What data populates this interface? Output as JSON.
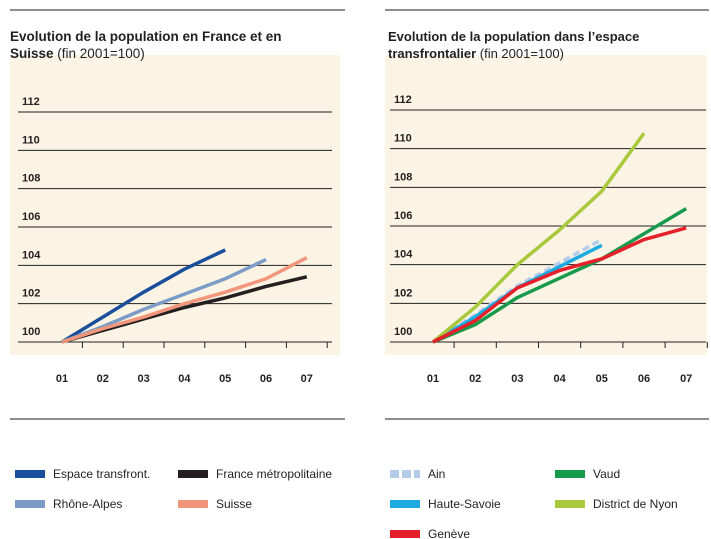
{
  "chart_data": [
    {
      "type": "line",
      "title": "Evolution de la population en France et en Suisse",
      "subtitle": "(fin 2001=100)",
      "categories": [
        "01",
        "02",
        "03",
        "04",
        "05",
        "06",
        "07"
      ],
      "ylim": [
        100,
        112
      ],
      "yticks": [
        100,
        102,
        104,
        106,
        108,
        110,
        112
      ],
      "grid": true,
      "series": [
        {
          "name": "Espace transfront.",
          "color": "#1b4e9b",
          "values": [
            100,
            101.3,
            102.6,
            103.8,
            104.8,
            null,
            null
          ]
        },
        {
          "name": "France métropolitaine",
          "color": "#231f20",
          "values": [
            100,
            100.6,
            101.2,
            101.8,
            102.3,
            102.9,
            103.4
          ]
        },
        {
          "name": "Rhône-Alpes",
          "color": "#7b9cc6",
          "values": [
            100,
            100.8,
            101.7,
            102.5,
            103.3,
            104.3,
            null
          ]
        },
        {
          "name": "Suisse",
          "color": "#f1967b",
          "values": [
            100,
            100.7,
            101.3,
            102.0,
            102.6,
            103.3,
            104.4
          ]
        }
      ]
    },
    {
      "type": "line",
      "title": "Evolution de la population dans l’espace transfrontalier",
      "subtitle": "(fin 2001=100)",
      "categories": [
        "01",
        "02",
        "03",
        "04",
        "05",
        "06",
        "07"
      ],
      "ylim": [
        100,
        112
      ],
      "yticks": [
        100,
        102,
        104,
        106,
        108,
        110,
        112
      ],
      "grid": true,
      "series": [
        {
          "name": "Ain",
          "color": "#b4cbe9",
          "dashed": true,
          "values": [
            100,
            101.4,
            102.9,
            104.1,
            105.3,
            null,
            null
          ]
        },
        {
          "name": "Vaud",
          "color": "#179a4b",
          "values": [
            100,
            100.9,
            102.3,
            103.3,
            104.3,
            105.6,
            106.9
          ]
        },
        {
          "name": "Haute-Savoie",
          "color": "#1ea9e1",
          "values": [
            100,
            101.3,
            102.8,
            103.9,
            105.0,
            null,
            null
          ]
        },
        {
          "name": "District de Nyon",
          "color": "#a8c93c",
          "values": [
            100,
            101.8,
            104.0,
            105.8,
            107.8,
            110.8,
            null
          ]
        },
        {
          "name": "Genève",
          "color": "#e5202a",
          "values": [
            100,
            101.1,
            102.8,
            103.7,
            104.3,
            105.3,
            105.9
          ]
        }
      ]
    }
  ]
}
